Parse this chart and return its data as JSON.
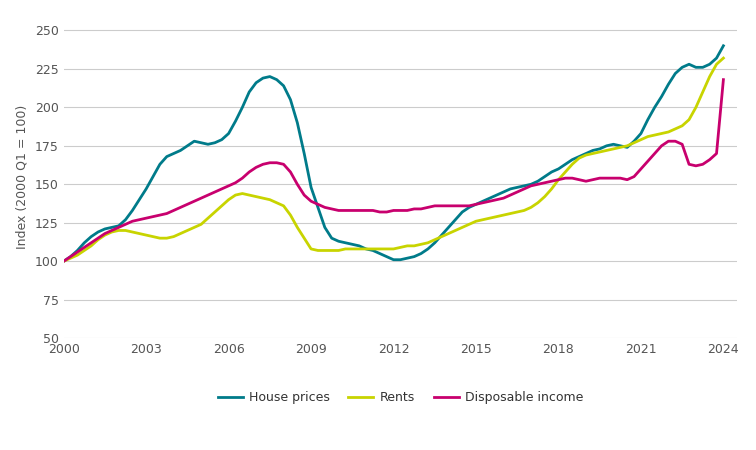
{
  "title": "",
  "ylabel": "Index (2000 Q1 = 100)",
  "ylim": [
    50,
    260
  ],
  "yticks": [
    50,
    75,
    100,
    125,
    150,
    175,
    200,
    225,
    250
  ],
  "xlim": [
    2000,
    2024.5
  ],
  "xticks": [
    2000,
    2003,
    2006,
    2009,
    2012,
    2015,
    2018,
    2021,
    2024
  ],
  "house_prices_color": "#007B8A",
  "rents_color": "#C8D400",
  "disposable_income_color": "#C8006E",
  "line_width": 2.0,
  "background_color": "#ffffff",
  "grid_color": "#cccccc",
  "legend_labels": [
    "House prices",
    "Rents",
    "Disposable income"
  ],
  "years": [
    2000.0,
    2000.25,
    2000.5,
    2000.75,
    2001.0,
    2001.25,
    2001.5,
    2001.75,
    2002.0,
    2002.25,
    2002.5,
    2002.75,
    2003.0,
    2003.25,
    2003.5,
    2003.75,
    2004.0,
    2004.25,
    2004.5,
    2004.75,
    2005.0,
    2005.25,
    2005.5,
    2005.75,
    2006.0,
    2006.25,
    2006.5,
    2006.75,
    2007.0,
    2007.25,
    2007.5,
    2007.75,
    2008.0,
    2008.25,
    2008.5,
    2008.75,
    2009.0,
    2009.25,
    2009.5,
    2009.75,
    2010.0,
    2010.25,
    2010.5,
    2010.75,
    2011.0,
    2011.25,
    2011.5,
    2011.75,
    2012.0,
    2012.25,
    2012.5,
    2012.75,
    2013.0,
    2013.25,
    2013.5,
    2013.75,
    2014.0,
    2014.25,
    2014.5,
    2014.75,
    2015.0,
    2015.25,
    2015.5,
    2015.75,
    2016.0,
    2016.25,
    2016.5,
    2016.75,
    2017.0,
    2017.25,
    2017.5,
    2017.75,
    2018.0,
    2018.25,
    2018.5,
    2018.75,
    2019.0,
    2019.25,
    2019.5,
    2019.75,
    2020.0,
    2020.25,
    2020.5,
    2020.75,
    2021.0,
    2021.25,
    2021.5,
    2021.75,
    2022.0,
    2022.25,
    2022.5,
    2022.75,
    2023.0,
    2023.25,
    2023.5,
    2023.75,
    2024.0
  ],
  "house_prices": [
    100,
    103,
    107,
    112,
    116,
    119,
    121,
    122,
    123,
    127,
    133,
    140,
    147,
    155,
    163,
    168,
    170,
    172,
    175,
    178,
    177,
    176,
    177,
    179,
    183,
    191,
    200,
    210,
    216,
    219,
    220,
    218,
    214,
    205,
    190,
    170,
    148,
    135,
    122,
    115,
    113,
    112,
    111,
    110,
    108,
    107,
    105,
    103,
    101,
    101,
    102,
    103,
    105,
    108,
    112,
    117,
    122,
    127,
    132,
    135,
    137,
    139,
    141,
    143,
    145,
    147,
    148,
    149,
    150,
    152,
    155,
    158,
    160,
    163,
    166,
    168,
    170,
    172,
    173,
    175,
    176,
    175,
    174,
    178,
    183,
    192,
    200,
    207,
    215,
    222,
    226,
    228,
    226,
    226,
    228,
    232,
    240
  ],
  "rents": [
    100,
    102,
    104,
    107,
    110,
    114,
    117,
    119,
    120,
    120,
    119,
    118,
    117,
    116,
    115,
    115,
    116,
    118,
    120,
    122,
    124,
    128,
    132,
    136,
    140,
    143,
    144,
    143,
    142,
    141,
    140,
    138,
    136,
    130,
    122,
    115,
    108,
    107,
    107,
    107,
    107,
    108,
    108,
    108,
    108,
    108,
    108,
    108,
    108,
    109,
    110,
    110,
    111,
    112,
    114,
    116,
    118,
    120,
    122,
    124,
    126,
    127,
    128,
    129,
    130,
    131,
    132,
    133,
    135,
    138,
    142,
    147,
    153,
    158,
    163,
    167,
    169,
    170,
    171,
    172,
    173,
    174,
    175,
    177,
    179,
    181,
    182,
    183,
    184,
    186,
    188,
    192,
    200,
    210,
    220,
    228,
    232
  ],
  "disposable_income": [
    100,
    103,
    106,
    109,
    112,
    115,
    118,
    120,
    122,
    124,
    126,
    127,
    128,
    129,
    130,
    131,
    133,
    135,
    137,
    139,
    141,
    143,
    145,
    147,
    149,
    151,
    154,
    158,
    161,
    163,
    164,
    164,
    163,
    158,
    150,
    143,
    139,
    137,
    135,
    134,
    133,
    133,
    133,
    133,
    133,
    133,
    132,
    132,
    133,
    133,
    133,
    134,
    134,
    135,
    136,
    136,
    136,
    136,
    136,
    136,
    137,
    138,
    139,
    140,
    141,
    143,
    145,
    147,
    149,
    150,
    151,
    152,
    153,
    154,
    154,
    153,
    152,
    153,
    154,
    154,
    154,
    154,
    153,
    155,
    160,
    165,
    170,
    175,
    178,
    178,
    176,
    163,
    162,
    163,
    166,
    170,
    218
  ]
}
